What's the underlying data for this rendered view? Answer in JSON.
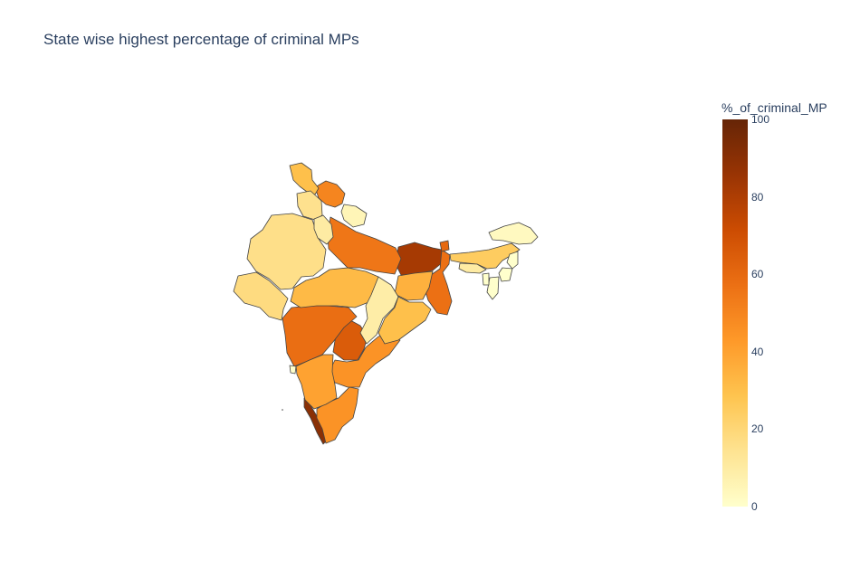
{
  "title": "State wise highest percentage of criminal MPs",
  "colorbar": {
    "title": "%_of_criminal_MP",
    "ticks": [
      "100",
      "80",
      "60",
      "40",
      "20",
      "0"
    ],
    "range": [
      0,
      100
    ],
    "colorscale": [
      "#ffffcc",
      "#fee391",
      "#fec44f",
      "#fe9929",
      "#ec7014",
      "#cc4c02",
      "#993404",
      "#662506"
    ]
  },
  "chart_data": {
    "type": "choropleth",
    "title": "State wise highest percentage of criminal MPs",
    "color_variable": "%_of_criminal_MP",
    "range": [
      0,
      100
    ],
    "regions": [
      {
        "id": "kerala",
        "value": 90
      },
      {
        "id": "bihar",
        "value": 82
      },
      {
        "id": "telangana",
        "value": 65
      },
      {
        "id": "maharashtra",
        "value": 58
      },
      {
        "id": "west-bengal",
        "value": 57
      },
      {
        "id": "uttar-pradesh",
        "value": 55
      },
      {
        "id": "himachal-pradesh",
        "value": 50
      },
      {
        "id": "tamil-nadu",
        "value": 45
      },
      {
        "id": "andhra-pradesh",
        "value": 45
      },
      {
        "id": "karnataka",
        "value": 40
      },
      {
        "id": "jharkhand",
        "value": 35
      },
      {
        "id": "jammu-kashmir",
        "value": 30
      },
      {
        "id": "madhya-pradesh",
        "value": 32
      },
      {
        "id": "odisha",
        "value": 30
      },
      {
        "id": "delhi",
        "value": 28
      },
      {
        "id": "assam",
        "value": 25
      },
      {
        "id": "gujarat",
        "value": 18
      },
      {
        "id": "rajasthan",
        "value": 16
      },
      {
        "id": "punjab",
        "value": 15
      },
      {
        "id": "haryana",
        "value": 10
      },
      {
        "id": "chhattisgarh",
        "value": 9
      },
      {
        "id": "uttarakhand",
        "value": 5
      },
      {
        "id": "arunachal-pradesh",
        "value": 3
      },
      {
        "id": "meghalaya",
        "value": 10
      },
      {
        "id": "nagaland",
        "value": 0
      },
      {
        "id": "manipur",
        "value": 0
      },
      {
        "id": "mizoram",
        "value": 0
      },
      {
        "id": "tripura",
        "value": 0
      },
      {
        "id": "sikkim",
        "value": 60
      },
      {
        "id": "goa",
        "value": 0
      }
    ]
  }
}
